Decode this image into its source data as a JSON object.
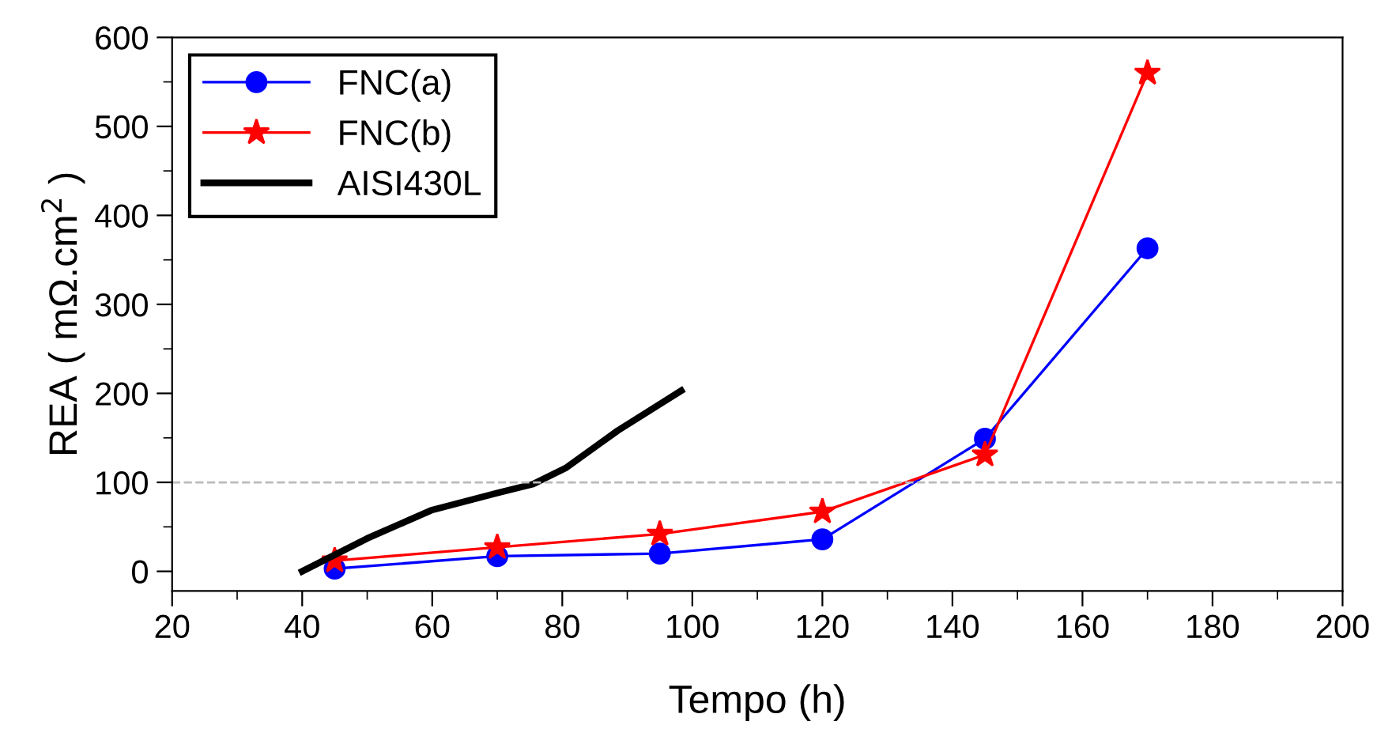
{
  "chart_data": {
    "type": "line",
    "xlabel": "Tempo (h)",
    "ylabel": "REA ( mΩ.cm$^{2}$ )",
    "xlim": [
      20,
      200
    ],
    "xticks": [
      20,
      40,
      60,
      80,
      100,
      120,
      140,
      160,
      180,
      200
    ],
    "ylim": [
      -22,
      600
    ],
    "yticks": [
      0,
      100,
      200,
      300,
      400,
      500,
      600
    ],
    "grid": false,
    "legend": "top left",
    "series": [
      {
        "name": "FNC(a)",
        "color": "#0000ff",
        "marker": "circle",
        "x": [
          45,
          70,
          95,
          120,
          145,
          170
        ],
        "values": [
          3,
          17,
          20,
          36,
          149,
          363
        ]
      },
      {
        "name": "FNC(b)",
        "color": "#ff0000",
        "marker": "star",
        "x": [
          45,
          70,
          95,
          120,
          145,
          170
        ],
        "values": [
          12,
          27,
          42,
          67,
          131,
          560
        ]
      },
      {
        "name": "AISI430L",
        "color": "#000000",
        "marker": "none",
        "x": [
          40,
          50,
          60,
          70,
          75.5,
          80.5,
          88.5,
          98.3
        ],
        "values": [
          0,
          37,
          69,
          88,
          98,
          116,
          158,
          203
        ]
      }
    ],
    "ref_lines": [
      {
        "axis": "y",
        "value": 100,
        "color": "#bbbbbb",
        "line_style": "dashed"
      }
    ]
  }
}
